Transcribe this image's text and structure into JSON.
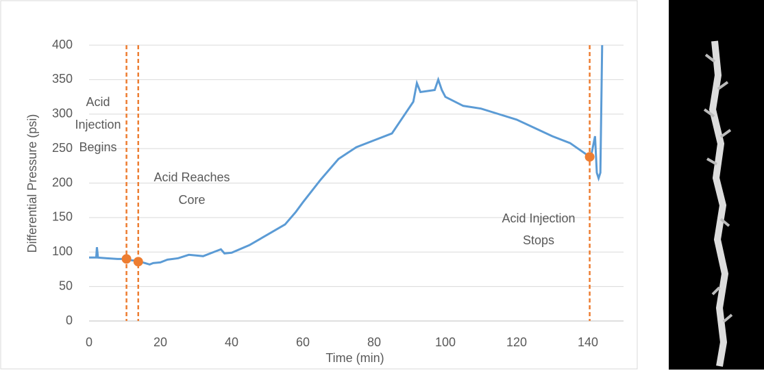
{
  "chart_data": {
    "type": "line",
    "xlabel": "Time (min)",
    "ylabel": "Differential Pressure (psi)",
    "xlim": [
      0,
      150
    ],
    "xticks": [
      0,
      20,
      40,
      60,
      80,
      100,
      120,
      140
    ],
    "ylim": [
      0,
      400
    ],
    "yticks": [
      0,
      50,
      100,
      150,
      200,
      250,
      300,
      350,
      400
    ],
    "grid": true,
    "series": [
      {
        "color": "#5b9bd5",
        "x": [
          0,
          2,
          2.2,
          2.5,
          5,
          8,
          10,
          12,
          14,
          15,
          17,
          18,
          20,
          22,
          25,
          28,
          30,
          32,
          35,
          37,
          38,
          40,
          45,
          50,
          55,
          58,
          60,
          65,
          70,
          75,
          80,
          85,
          88,
          91,
          92,
          93,
          97,
          98,
          99,
          100,
          105,
          110,
          115,
          120,
          125,
          130,
          135,
          140,
          141,
          142,
          142.5,
          143,
          143.5,
          144
        ],
        "values": [
          92,
          92,
          107,
          92,
          91,
          90,
          90,
          88,
          87,
          85,
          82,
          84,
          85,
          89,
          91,
          96,
          95,
          94,
          100,
          104,
          98,
          99,
          110,
          125,
          140,
          158,
          172,
          205,
          235,
          252,
          262,
          272,
          295,
          318,
          345,
          332,
          335,
          350,
          335,
          325,
          312,
          308,
          300,
          292,
          280,
          268,
          258,
          240,
          242,
          268,
          215,
          207,
          215,
          400
        ]
      },
      {
        "color": "#ed7d31",
        "x": [
          10.5,
          13.8,
          140.5
        ],
        "values": [
          90,
          86,
          238
        ]
      }
    ],
    "annotations": [
      {
        "lines": [
          "Acid",
          "Injection",
          "Begins"
        ]
      },
      {
        "lines": [
          "Acid Reaches",
          "Core"
        ]
      },
      {
        "lines": [
          "Acid Injection",
          "Stops"
        ]
      }
    ]
  }
}
